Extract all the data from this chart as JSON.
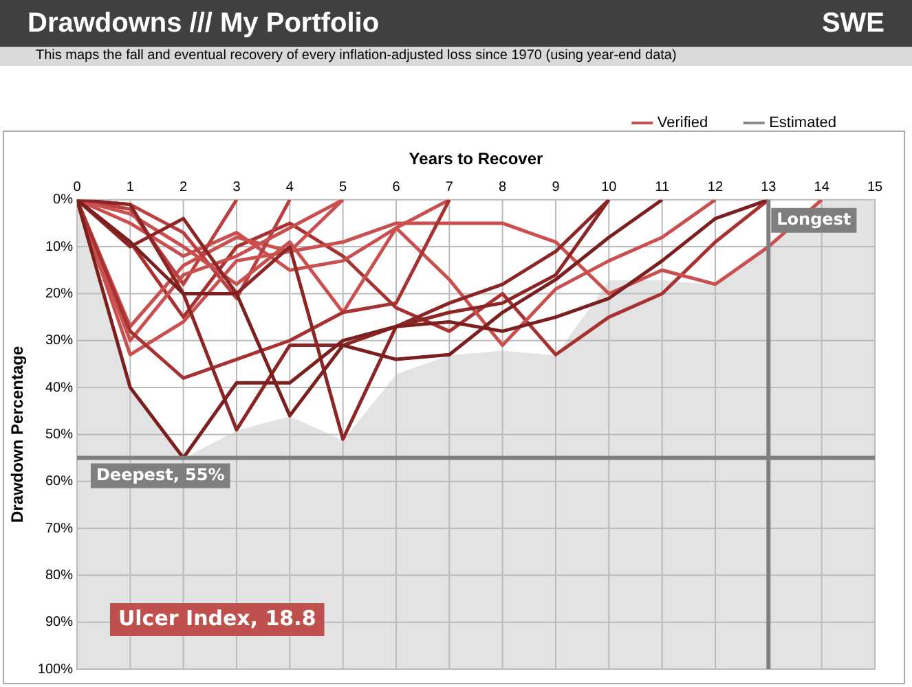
{
  "chart_data": {
    "type": "line",
    "title": "Drawdowns /// My Portfolio",
    "subtitle": "This maps the fall and eventual recovery of every inflation-adjusted loss since 1970 (using year-end data)",
    "xlabel": "Years to Recover",
    "ylabel": "Drawdown Percentage",
    "x": [
      0,
      1,
      2,
      3,
      4,
      5,
      6,
      7,
      8,
      9,
      10,
      11,
      12,
      13,
      14,
      15
    ],
    "series": [
      {
        "type": "area",
        "color": "#ffffff",
        "values": [
          0,
          40,
          55,
          49,
          46,
          51,
          37,
          33,
          32,
          33,
          17,
          17,
          18,
          10,
          0,
          0
        ]
      },
      {
        "color": "#7b1f1f",
        "values": [
          0,
          40,
          55,
          39,
          39,
          30,
          27,
          26,
          28,
          25,
          21,
          13,
          4,
          0,
          null,
          null
        ]
      },
      {
        "color": "#7b1f1f",
        "values": [
          0,
          9,
          20,
          20,
          46,
          31,
          34,
          33,
          24,
          17,
          8,
          0,
          null,
          null,
          null,
          null
        ]
      },
      {
        "color": "#8c2525",
        "values": [
          0,
          1,
          20,
          49,
          31,
          31,
          27,
          24,
          22,
          16,
          0,
          null,
          null,
          null,
          null,
          null
        ]
      },
      {
        "color": "#8c2525",
        "values": [
          0,
          10,
          4,
          20,
          10,
          51,
          27,
          22,
          18,
          11,
          0,
          null,
          null,
          null,
          null,
          null
        ]
      },
      {
        "color": "#a83232",
        "values": [
          0,
          28,
          38,
          34,
          30,
          24,
          22,
          0,
          null,
          null,
          null,
          null,
          null,
          null,
          null,
          null
        ]
      },
      {
        "color": "#c9504e",
        "values": [
          0,
          33,
          26,
          13,
          11,
          0,
          null,
          null,
          null,
          null,
          null,
          null,
          null,
          null,
          null,
          null
        ]
      },
      {
        "color": "#c9504e",
        "values": [
          0,
          3,
          10,
          18,
          9,
          24,
          6,
          0,
          null,
          null,
          null,
          null,
          null,
          null,
          null,
          null
        ]
      },
      {
        "color": "#c9504e",
        "values": [
          0,
          30,
          16,
          12,
          6,
          0,
          null,
          null,
          null,
          null,
          null,
          null,
          null,
          null,
          null,
          null
        ]
      },
      {
        "color": "#b84040",
        "values": [
          0,
          2,
          18,
          0,
          null,
          null,
          null,
          null,
          null,
          null,
          null,
          null,
          null,
          null,
          null,
          null
        ]
      },
      {
        "color": "#b84040",
        "values": [
          0,
          1,
          7,
          21,
          0,
          null,
          null,
          null,
          null,
          null,
          null,
          null,
          null,
          null,
          null,
          null
        ]
      },
      {
        "name": "Verified",
        "color": "#c9504e",
        "values": [
          0,
          27,
          14,
          8,
          11,
          9,
          5,
          5,
          5,
          9,
          20,
          15,
          18,
          10,
          0,
          null
        ]
      },
      {
        "color": "#c9504e",
        "values": [
          0,
          5,
          12,
          7,
          15,
          13,
          6,
          17,
          31,
          19,
          13,
          8,
          0,
          null,
          null,
          null
        ]
      },
      {
        "color": "#a83232",
        "values": [
          0,
          9,
          25,
          10,
          5,
          12,
          23,
          28,
          20,
          33,
          25,
          20,
          9,
          0,
          null,
          null
        ]
      },
      {
        "name": "Estimated",
        "color": "#8c8c8c",
        "values": [
          null,
          null,
          null,
          null,
          null,
          null,
          null,
          null,
          null,
          null,
          null,
          null,
          null,
          null,
          null,
          null
        ]
      }
    ],
    "xlim": [
      0,
      15
    ],
    "xticks": [
      0,
      1,
      2,
      3,
      4,
      5,
      6,
      7,
      8,
      9,
      10,
      11,
      12,
      13,
      14,
      15
    ],
    "ylim": [
      100,
      0
    ],
    "yticks": [
      {
        "value": 0,
        "label": "0%"
      },
      {
        "value": 10,
        "label": "10%"
      },
      {
        "value": 20,
        "label": "20%"
      },
      {
        "value": 30,
        "label": "30%"
      },
      {
        "value": 40,
        "label": "40%"
      },
      {
        "value": 50,
        "label": "50%"
      },
      {
        "value": 60,
        "label": "60%"
      },
      {
        "value": 70,
        "label": "70%"
      },
      {
        "value": 80,
        "label": "80%"
      },
      {
        "value": 90,
        "label": "90%"
      },
      {
        "value": 100,
        "label": "100%"
      }
    ],
    "ref_lines": [
      {
        "axis": "y",
        "value": 55,
        "label": "Deepest, 55%",
        "color": "#7f7f7f"
      },
      {
        "axis": "x",
        "value": 13,
        "label": "Longest",
        "color": "#7f7f7f"
      }
    ],
    "annotations": [
      "SWE",
      "Ulcer Index, 18.8"
    ],
    "grid": true,
    "legend": "top right",
    "marker": "none",
    "line_style": "solid"
  }
}
